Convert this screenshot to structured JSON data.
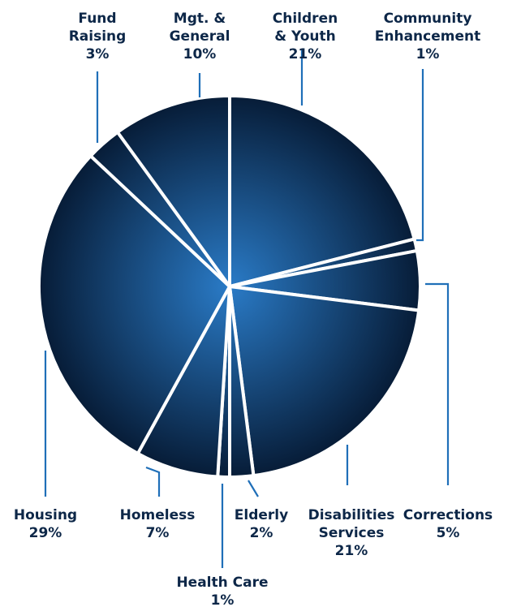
{
  "chart_data": {
    "type": "pie",
    "title": "",
    "colors": {
      "slice_center": "#2a7bc7",
      "slice_edge": "#061a34",
      "separator": "#ffffff",
      "leader_line": "#1f6fb8",
      "label_text": "#0d2748"
    },
    "slices": [
      {
        "label_lines": [
          "Children",
          "& Youth"
        ],
        "percent_label": "21%",
        "value": 21
      },
      {
        "label_lines": [
          "Community",
          "Enhancement"
        ],
        "percent_label": "1%",
        "value": 1
      },
      {
        "label_lines": [
          "Corrections"
        ],
        "percent_label": "5%",
        "value": 5
      },
      {
        "label_lines": [
          "Disabilities",
          "Services"
        ],
        "percent_label": "21%",
        "value": 21
      },
      {
        "label_lines": [
          "Elderly"
        ],
        "percent_label": "2%",
        "value": 2
      },
      {
        "label_lines": [
          "Health Care"
        ],
        "percent_label": "1%",
        "value": 1
      },
      {
        "label_lines": [
          "Homeless"
        ],
        "percent_label": "7%",
        "value": 7
      },
      {
        "label_lines": [
          "Housing"
        ],
        "percent_label": "29%",
        "value": 29
      },
      {
        "label_lines": [
          "Fund",
          "Raising"
        ],
        "percent_label": "3%",
        "value": 3
      },
      {
        "label_lines": [
          "Mgt.  &",
          "General"
        ],
        "percent_label": "10%",
        "value": 10
      }
    ]
  }
}
